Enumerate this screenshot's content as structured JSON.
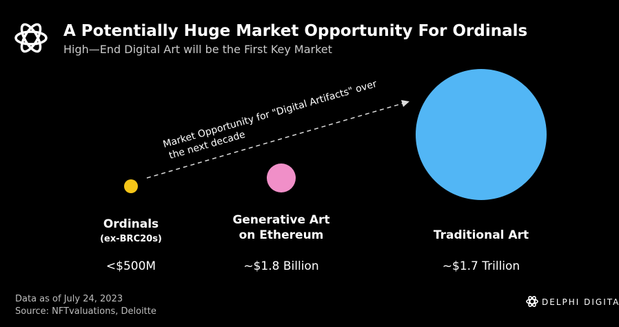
{
  "header": {
    "title": "A Potentially Huge Market Opportunity For Ordinals",
    "subtitle": "High—End Digital Art will be the First Key Market"
  },
  "annotation": {
    "lines": [
      "Market Opportunity for \"Digital Artifacts\" over",
      "the next decade"
    ]
  },
  "items": [
    {
      "label_lines": [
        "Ordinals"
      ],
      "sublabel": "(ex-BRC20s)",
      "value": "<$500M"
    },
    {
      "label_lines": [
        "Generative Art",
        "on Ethereum"
      ],
      "value": "~$1.8 Billion"
    },
    {
      "label_lines": [
        "Traditional Art"
      ],
      "value": "~$1.7 Trillion"
    }
  ],
  "footer": {
    "date_note": "Data as of July 24, 2023",
    "source": "Source: NFTvaluations, Deloitte",
    "brand": "DELPHI DIGITAL"
  }
}
